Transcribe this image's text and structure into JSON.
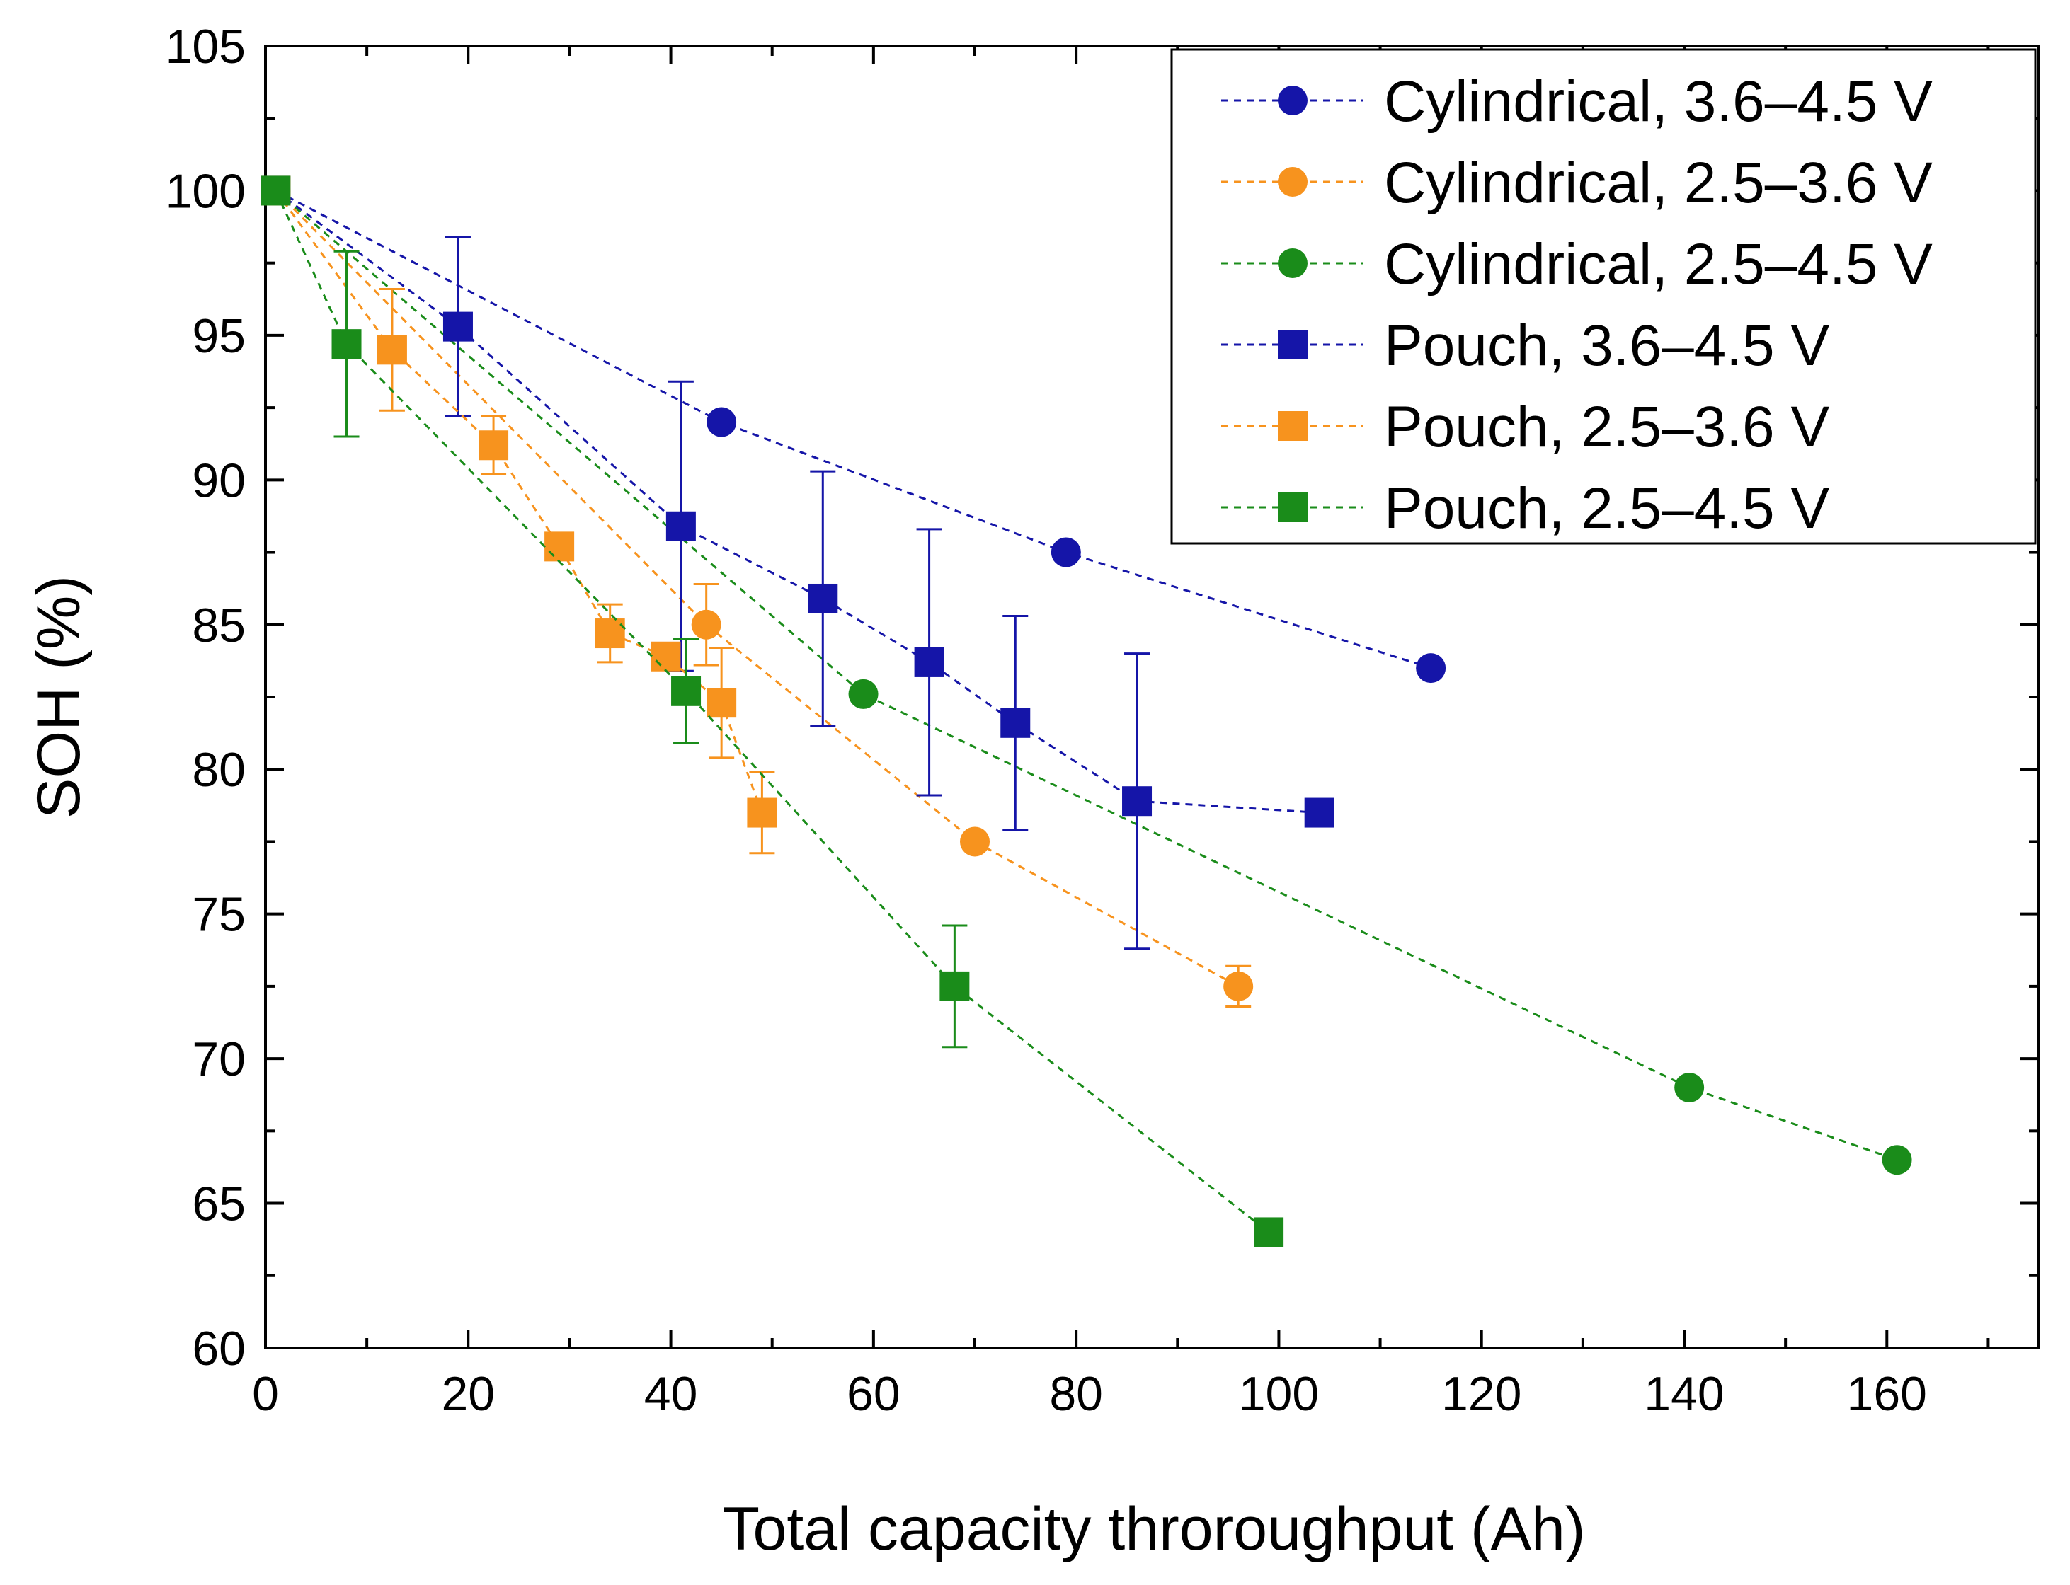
{
  "chart_data": {
    "type": "scatter",
    "title": "",
    "xlabel": "Total capacity throroughput (Ah)",
    "ylabel": "SOH (%)",
    "xlim": [
      0,
      175
    ],
    "ylim": [
      60,
      105
    ],
    "x_ticks": [
      0,
      20,
      40,
      60,
      80,
      100,
      120,
      140,
      160
    ],
    "y_ticks": [
      60,
      65,
      70,
      75,
      80,
      85,
      90,
      95,
      100,
      105
    ],
    "grid": false,
    "legend_position": "top-right",
    "series": [
      {
        "name": "Cylindrical, 3.6–4.5 V",
        "marker": "circle",
        "color": "#1515a8",
        "x": [
          1,
          45,
          79,
          115
        ],
        "y": [
          100,
          92,
          87.5,
          83.5
        ],
        "err": [
          0,
          0,
          0,
          0
        ]
      },
      {
        "name": "Cylindrical, 2.5–3.6 V",
        "marker": "circle",
        "color": "#f7931e",
        "x": [
          1,
          43.5,
          70,
          96
        ],
        "y": [
          100,
          85,
          77.5,
          72.5
        ],
        "err": [
          0,
          1.4,
          0,
          0.7
        ]
      },
      {
        "name": "Cylindrical, 2.5–4.5 V",
        "marker": "circle",
        "color": "#1a8c1a",
        "x": [
          1,
          59,
          140.5,
          161
        ],
        "y": [
          100,
          82.6,
          69,
          66.5
        ],
        "err": [
          0,
          0,
          0,
          0
        ]
      },
      {
        "name": "Pouch, 3.6–4.5 V",
        "marker": "square",
        "color": "#1515a8",
        "x": [
          1,
          19,
          41,
          55,
          65.5,
          74,
          86,
          104
        ],
        "y": [
          100,
          95.3,
          88.4,
          85.9,
          83.7,
          81.6,
          78.9,
          78.5
        ],
        "err": [
          0,
          3.1,
          5,
          4.4,
          4.6,
          3.7,
          5.1,
          0
        ]
      },
      {
        "name": "Pouch, 2.5–3.6 V",
        "marker": "square",
        "color": "#f7931e",
        "x": [
          1,
          12.5,
          22.5,
          29,
          34,
          39.5,
          45,
          49
        ],
        "y": [
          100,
          94.5,
          91.2,
          87.7,
          84.7,
          83.9,
          82.3,
          78.5
        ],
        "err": [
          0,
          2.1,
          1,
          0,
          1,
          0,
          1.9,
          1.4
        ]
      },
      {
        "name": "Pouch, 2.5–4.5 V",
        "marker": "square",
        "color": "#1a8c1a",
        "x": [
          1,
          8,
          41.5,
          68,
          99
        ],
        "y": [
          100,
          94.7,
          82.7,
          72.5,
          64
        ],
        "err": [
          0,
          3.2,
          1.8,
          2.1,
          0
        ]
      }
    ]
  }
}
